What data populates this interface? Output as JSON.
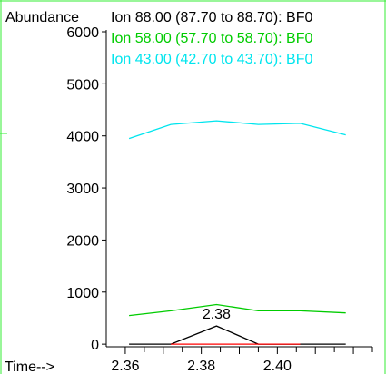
{
  "chart_data": {
    "type": "line",
    "ylabel": "Abundance",
    "xlabel": "Time-->",
    "xlim": [
      2.355,
      2.425
    ],
    "ylim": [
      -50,
      6000
    ],
    "yticks": [
      0,
      1000,
      2000,
      3000,
      4000,
      5000,
      6000
    ],
    "xticks": [
      2.36,
      2.38,
      2.4
    ],
    "x": [
      2.361,
      2.372,
      2.384,
      2.395,
      2.406,
      2.418
    ],
    "series": [
      {
        "name": "Ion 88.00 (87.70 to 88.70): BF0",
        "color": "#000000",
        "values": [
          0,
          0,
          350,
          0,
          0,
          0
        ]
      },
      {
        "name": "Ion 58.00 (57.70 to 58.70): BF0",
        "color": "#00cc00",
        "values": [
          550,
          640,
          760,
          640,
          640,
          600
        ]
      },
      {
        "name": "Ion 43.00 (42.70 to 43.70): BF0",
        "color": "#00e5ee",
        "values": [
          3950,
          4220,
          4290,
          4220,
          4240,
          4020
        ]
      }
    ],
    "extra_lines": [
      {
        "color": "#ff0000",
        "x": [
          2.372,
          2.406
        ],
        "values": [
          0,
          0
        ]
      }
    ],
    "annotations": [
      {
        "text": "2.38",
        "x": 2.384,
        "y": 350
      }
    ],
    "legend_position": "top-right",
    "frame_color": "#33ee33"
  }
}
